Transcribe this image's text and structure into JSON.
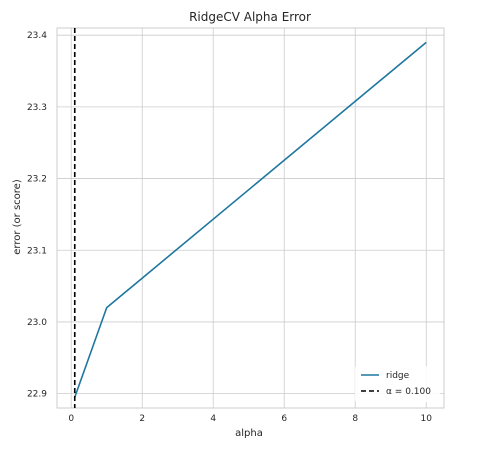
{
  "chart_data": {
    "type": "line",
    "title": "RidgeCV Alpha Error",
    "xlabel": "alpha",
    "ylabel": "error (or score)",
    "xlim": [
      -0.4,
      10.5
    ],
    "ylim": [
      22.88,
      23.41
    ],
    "x_ticks": [
      0,
      2,
      4,
      6,
      8,
      10
    ],
    "x_tick_labels": [
      "0",
      "2",
      "4",
      "6",
      "8",
      "10"
    ],
    "y_ticks": [
      22.9,
      23.0,
      23.1,
      23.2,
      23.3,
      23.4
    ],
    "y_tick_labels": [
      "22.9",
      "23.0",
      "23.1",
      "23.2",
      "23.3",
      "23.4"
    ],
    "grid": true,
    "series": [
      {
        "name": "ridge",
        "color": "#1f77a0",
        "x": [
          0.1,
          1,
          10
        ],
        "y": [
          22.895,
          23.02,
          23.39
        ]
      }
    ],
    "vline": {
      "x": 0.1,
      "label": "α = 0.100",
      "color": "#000000",
      "style": "dashed"
    },
    "legend": {
      "position": "lower-right",
      "entries": [
        {
          "label": "ridge",
          "type": "solid",
          "color": "#1f77a0"
        },
        {
          "label": "α = 0.100",
          "type": "dashed",
          "color": "#000000"
        }
      ]
    }
  }
}
